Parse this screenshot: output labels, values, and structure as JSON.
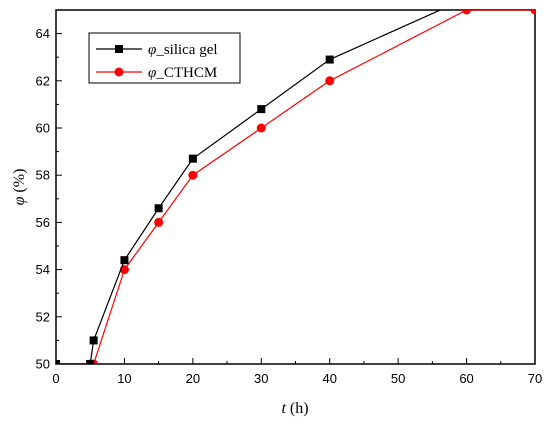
{
  "chart_data": {
    "type": "line",
    "xlabel": {
      "symbol": "t",
      "unit": "(h)"
    },
    "ylabel": {
      "symbol": "φ",
      "unit": "(%)"
    },
    "xlim": [
      0,
      70
    ],
    "ylim": [
      50,
      65
    ],
    "xticks": [
      0,
      10,
      20,
      30,
      40,
      50,
      60,
      70
    ],
    "yticks": [
      50,
      52,
      54,
      56,
      58,
      60,
      62,
      64
    ],
    "grid": false,
    "legend_position": "top-left",
    "series": [
      {
        "name": "φ_silica gel",
        "name_symbol": "φ",
        "name_suffix": "_silica gel",
        "color": "#000000",
        "marker": "square",
        "x": [
          0,
          5,
          5.5,
          10,
          15,
          20,
          30,
          40,
          60,
          70
        ],
        "y": [
          50,
          50,
          51,
          54.4,
          56.6,
          58.7,
          60.8,
          62.9,
          65.5,
          65.5
        ]
      },
      {
        "name": "φ_CTHCM",
        "name_symbol": "φ",
        "name_suffix": "_CTHCM",
        "color": "#ff0000",
        "marker": "circle",
        "x": [
          0,
          5,
          5.5,
          10,
          15,
          20,
          30,
          40,
          60,
          70
        ],
        "y": [
          50,
          50,
          50,
          54,
          56,
          58,
          60,
          62,
          65,
          65
        ]
      }
    ]
  }
}
